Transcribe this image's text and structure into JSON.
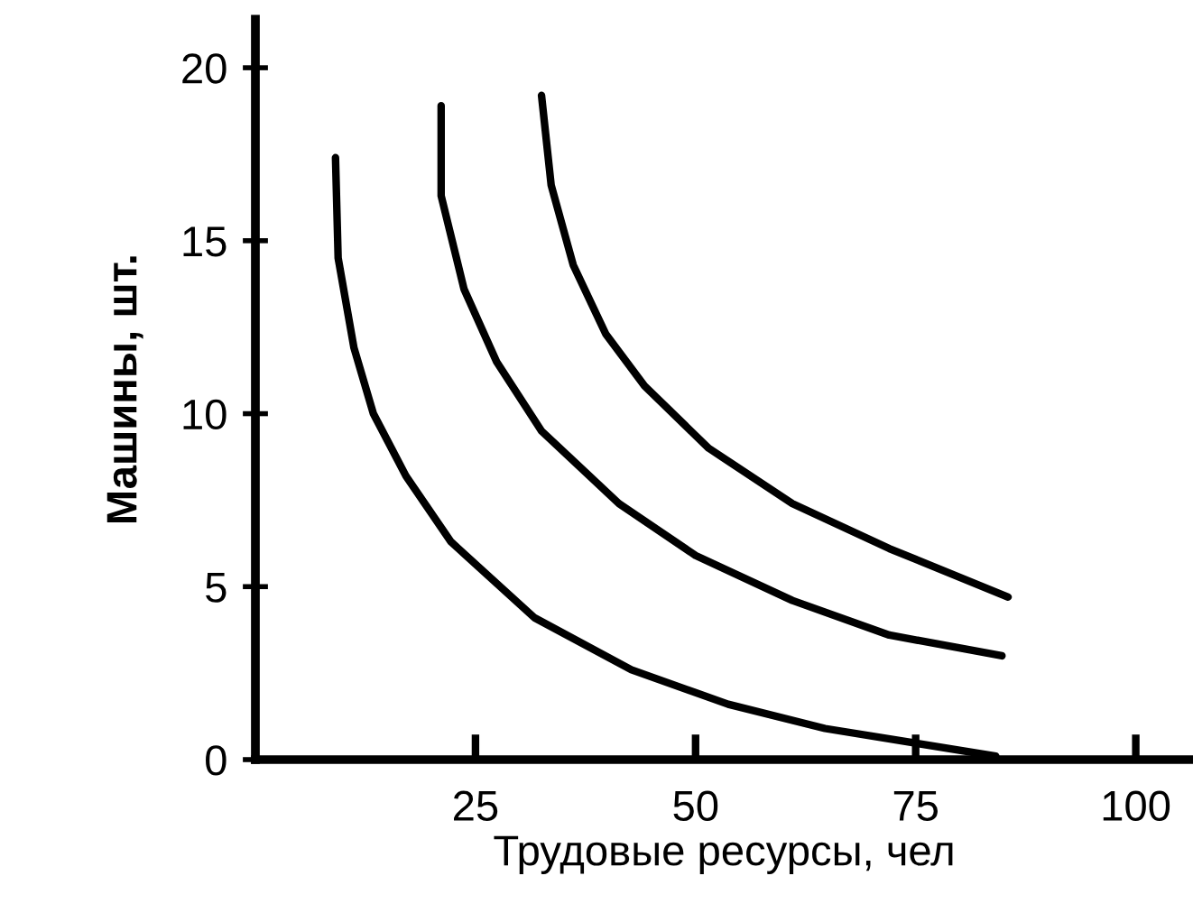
{
  "chart_data": {
    "type": "line",
    "xlabel": "Трудовые ресурсы, чел",
    "ylabel": "Машины, шт.",
    "xlim": [
      0,
      106.5
    ],
    "ylim": [
      0,
      21.4
    ],
    "xticks": [
      25,
      50,
      75,
      100
    ],
    "yticks": [
      0,
      5,
      10,
      15,
      20
    ],
    "grid": false,
    "legend": false,
    "marker": "none",
    "line_style": "solid",
    "series": [
      {
        "color": "#000000",
        "x": [
          9.1,
          9.4,
          11.2,
          13.4,
          17.1,
          22.2,
          31.7,
          42.7,
          53.7,
          64.7,
          84.1
        ],
        "values": [
          17.4,
          14.5,
          11.9,
          10.0,
          8.2,
          6.3,
          4.1,
          2.6,
          1.6,
          0.9,
          0.1
        ]
      },
      {
        "color": "#000000",
        "x": [
          21.1,
          21.1,
          23.7,
          27.4,
          32.5,
          41.3,
          50.0,
          61.0,
          72.0,
          84.8
        ],
        "values": [
          18.9,
          16.3,
          13.6,
          11.5,
          9.5,
          7.4,
          5.9,
          4.6,
          3.6,
          3.0
        ]
      },
      {
        "color": "#000000",
        "x": [
          32.5,
          33.6,
          36.1,
          39.8,
          44.2,
          51.5,
          61.0,
          72.0,
          85.5
        ],
        "values": [
          19.2,
          16.6,
          14.3,
          12.3,
          10.8,
          9.0,
          7.4,
          6.1,
          4.7
        ]
      }
    ]
  }
}
